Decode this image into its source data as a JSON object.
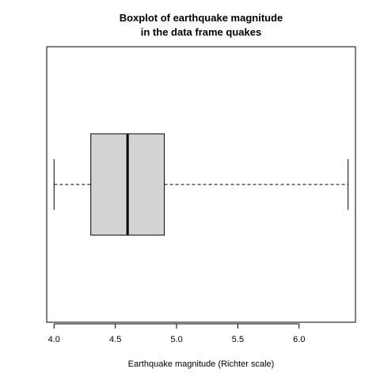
{
  "chart_data": {
    "type": "boxplot",
    "orientation": "horizontal",
    "title": [
      "Boxplot of earthquake magnitude",
      "in the data frame quakes"
    ],
    "xlabel": "Earthquake magnitude (Richter scale)",
    "ylabel": "",
    "xlim": [
      3.94,
      6.46
    ],
    "x_ticks": [
      4.0,
      4.5,
      5.0,
      5.5,
      6.0
    ],
    "x_tick_labels": [
      "4.0",
      "4.5",
      "5.0",
      "5.5",
      "6.0"
    ],
    "grid": false,
    "legend": "none",
    "boxes": [
      {
        "min": 4.0,
        "q1": 4.3,
        "median": 4.6,
        "q3": 4.9,
        "max": 6.4
      }
    ],
    "colors": {
      "box_fill": "#d3d3d3",
      "stroke": "#000000",
      "background": "#ffffff"
    }
  }
}
